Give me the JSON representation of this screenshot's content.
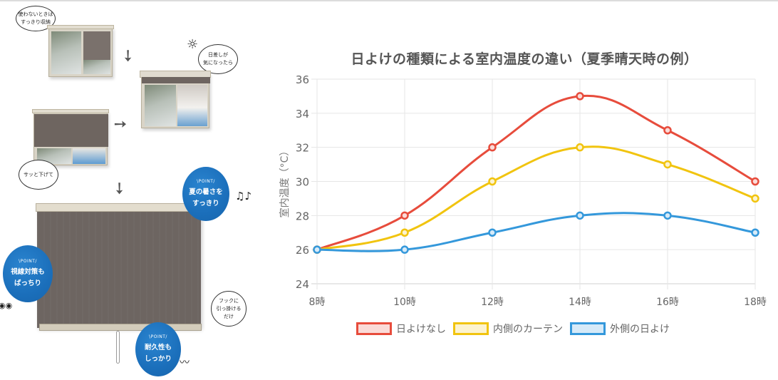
{
  "illustration": {
    "bubbles": [
      {
        "text": "使わないときは\nすっきり収納"
      },
      {
        "text": "日差しが\n気になったら"
      },
      {
        "text": "サッと下げて"
      },
      {
        "text": "フックに\n引っ掛ける\nだけ"
      }
    ],
    "points": [
      {
        "tag": "\\POINT/",
        "text": "夏の暑さを\nすっきり"
      },
      {
        "tag": "\\POINT/",
        "text": "視線対策も\nばっちり"
      },
      {
        "tag": "\\POINT/",
        "text": "耐久性も\nしっかり"
      }
    ]
  },
  "chart_data": {
    "type": "line",
    "title": "日よけの種類による室内温度の違い（夏季晴天時の例）",
    "xlabel": "",
    "ylabel": "室内温度（°C）",
    "categories": [
      "8時",
      "10時",
      "12時",
      "14時",
      "16時",
      "18時"
    ],
    "ylim": [
      24,
      36
    ],
    "yticks": [
      24,
      26,
      28,
      30,
      32,
      34,
      36
    ],
    "grid": true,
    "legend_position": "bottom",
    "series": [
      {
        "name": "日よけなし",
        "color": "#e74c3c",
        "fill": "#fadbd8",
        "values": [
          26,
          28,
          32,
          35,
          33,
          30
        ]
      },
      {
        "name": "内側のカーテン",
        "color": "#f1c40f",
        "fill": "#fcf3cf",
        "values": [
          26,
          27,
          30,
          32,
          31,
          29
        ]
      },
      {
        "name": "外側の日よけ",
        "color": "#3498db",
        "fill": "#d6eaf8",
        "values": [
          26,
          26,
          27,
          28,
          28,
          27
        ]
      }
    ]
  }
}
